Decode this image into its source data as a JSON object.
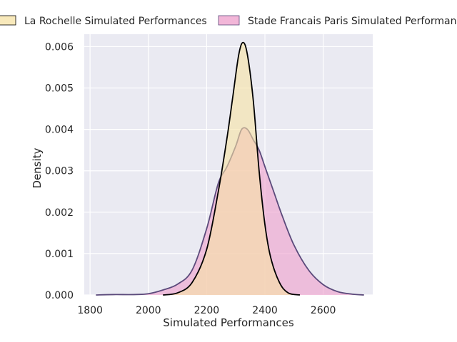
{
  "chart_data": {
    "type": "area",
    "xlabel": "Simulated Performances",
    "ylabel": "Density",
    "xlim": [
      1780,
      2770
    ],
    "ylim": [
      0,
      0.0063
    ],
    "xticks": [
      1800,
      2000,
      2200,
      2400,
      2600
    ],
    "yticks": [
      "0.000",
      "0.001",
      "0.002",
      "0.003",
      "0.004",
      "0.005",
      "0.006"
    ],
    "grid": true,
    "legend_position": "top",
    "series": [
      {
        "name": "Stade Francais Paris Simulated Performances",
        "fill": "#ee9ecb",
        "stroke": "#5b4a7b",
        "points": [
          [
            1820,
            0
          ],
          [
            1880,
            1e-05
          ],
          [
            1950,
            1e-05
          ],
          [
            2000,
            3e-05
          ],
          [
            2050,
            0.00012
          ],
          [
            2100,
            0.00026
          ],
          [
            2150,
            0.0006
          ],
          [
            2200,
            0.0016
          ],
          [
            2240,
            0.0027
          ],
          [
            2270,
            0.0031
          ],
          [
            2300,
            0.0036
          ],
          [
            2320,
            0.004
          ],
          [
            2340,
            0.004
          ],
          [
            2360,
            0.00375
          ],
          [
            2380,
            0.0035
          ],
          [
            2400,
            0.0031
          ],
          [
            2430,
            0.0025
          ],
          [
            2460,
            0.0019
          ],
          [
            2500,
            0.0012
          ],
          [
            2550,
            0.0006
          ],
          [
            2600,
            0.00025
          ],
          [
            2650,
            8e-05
          ],
          [
            2700,
            2e-05
          ],
          [
            2740,
            0
          ]
        ]
      },
      {
        "name": "La Rochelle Simulated Performances",
        "fill": "#f6e2a4",
        "stroke": "#000000",
        "points": [
          [
            2050,
            0
          ],
          [
            2100,
            5e-05
          ],
          [
            2150,
            0.0003
          ],
          [
            2200,
            0.0011
          ],
          [
            2240,
            0.0025
          ],
          [
            2270,
            0.0038
          ],
          [
            2290,
            0.0048
          ],
          [
            2310,
            0.0058
          ],
          [
            2325,
            0.0061
          ],
          [
            2340,
            0.0058
          ],
          [
            2360,
            0.0047
          ],
          [
            2380,
            0.003
          ],
          [
            2400,
            0.0017
          ],
          [
            2420,
            0.0009
          ],
          [
            2450,
            0.0003
          ],
          [
            2480,
            5e-05
          ],
          [
            2520,
            0
          ]
        ]
      }
    ],
    "legend_order": [
      1,
      0
    ]
  }
}
